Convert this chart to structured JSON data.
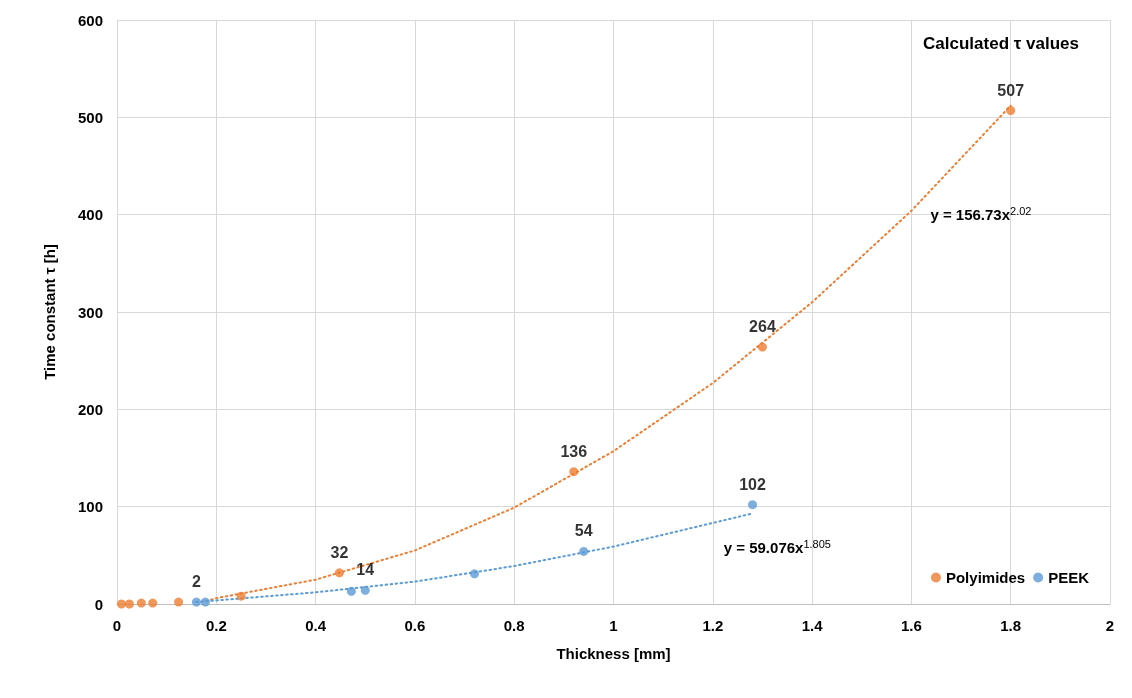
{
  "chart_data": {
    "type": "scatter",
    "title": "Calculated τ values",
    "xlabel": "Thickness [mm]",
    "ylabel": "Time constant τ [h]",
    "xlim": [
      0,
      2
    ],
    "xticks": [
      0,
      0.2,
      0.4,
      0.6,
      0.8,
      1,
      1.2,
      1.4,
      1.6,
      1.8,
      2
    ],
    "ylim": [
      0,
      600
    ],
    "yticks": [
      0,
      100,
      200,
      300,
      400,
      500,
      600
    ],
    "grid": true,
    "legend": "bottom right",
    "marker": "circle",
    "series": [
      {
        "name": "Polyimides",
        "color": "#ed7d31",
        "x": [
          0.009,
          0.025,
          0.049,
          0.072,
          0.124,
          0.25,
          0.448,
          0.92,
          1.3,
          1.8
        ],
        "values": [
          0,
          0,
          1,
          1,
          2,
          8,
          32,
          136,
          264,
          507
        ],
        "value_labels": [
          null,
          null,
          null,
          null,
          null,
          null,
          "32",
          "136",
          "264",
          "507"
        ]
      },
      {
        "name": "PEEK",
        "color": "#5b9bd5",
        "x": [
          0.16,
          0.178,
          0.472,
          0.5,
          0.72,
          0.94,
          1.28
        ],
        "values": [
          2,
          2,
          13,
          14,
          31,
          54,
          102
        ],
        "value_labels": [
          "2",
          null,
          null,
          "14",
          null,
          "54",
          "102"
        ]
      },
      {
        "type": "line",
        "line_style": "dotted",
        "marker": "none",
        "color": "#ed7d31",
        "x": [
          0.18,
          0.2,
          0.4,
          0.6,
          0.8,
          1,
          1.2,
          1.4,
          1.6,
          1.8
        ],
        "values": [
          3,
          6,
          25,
          55,
          99,
          157,
          227,
          310,
          404,
          512
        ]
      },
      {
        "type": "line",
        "line_style": "dotted",
        "marker": "none",
        "color": "#5b9bd5",
        "x": [
          0.16,
          0.4,
          0.6,
          0.8,
          1,
          1.28
        ],
        "values": [
          2,
          12,
          23,
          39,
          59,
          93
        ]
      }
    ],
    "annotations": [
      "y = 156.73x$^{2.02}$",
      "y = 59.076x$^{1.805}$"
    ]
  }
}
